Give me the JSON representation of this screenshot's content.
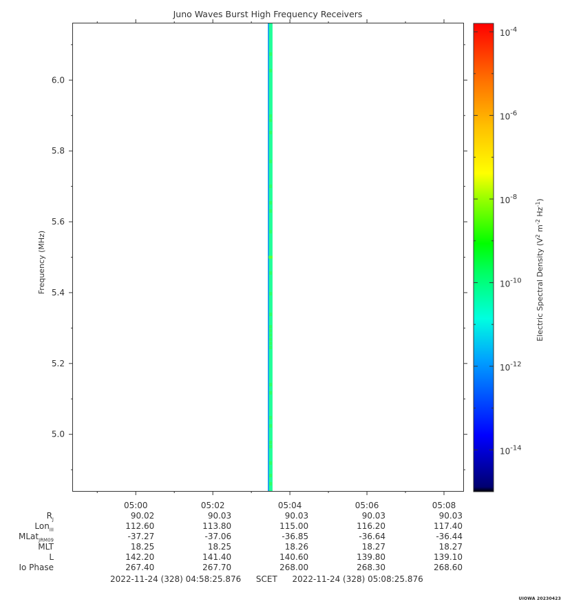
{
  "chart_data": {
    "type": "heatmap",
    "title": "Juno Waves Burst High Frequency Receivers",
    "ylabel": "Frequency (MHz)",
    "ylim": [
      4.84,
      6.16
    ],
    "y_ticks": [
      {
        "value": 5.0,
        "label": "5.0"
      },
      {
        "value": 5.2,
        "label": "5.2"
      },
      {
        "value": 5.4,
        "label": "5.4"
      },
      {
        "value": 5.6,
        "label": "5.6"
      },
      {
        "value": 5.8,
        "label": "5.8"
      },
      {
        "value": 6.0,
        "label": "6.0"
      }
    ],
    "x_time_range_minutes": [
      -1.63,
      8.5
    ],
    "x_ticks": [
      {
        "value": 0.0,
        "label": "05:00"
      },
      {
        "value": 2.0,
        "label": "05:02"
      },
      {
        "value": 4.0,
        "label": "05:04"
      },
      {
        "value": 6.0,
        "label": "05:06"
      },
      {
        "value": 8.0,
        "label": "05:08"
      }
    ],
    "data_column": {
      "time_start": 3.43,
      "time_end": 3.55,
      "typical_log10_density": -10.6,
      "peak": {
        "frequency": 5.5,
        "log10_density": -8.6
      }
    },
    "colorbar": {
      "label": "Electric Spectral Density (V² m⁻² Hz⁻¹)",
      "log_range": [
        -15,
        -3.8
      ],
      "ticks": [
        {
          "exp": -14,
          "label_base": "10",
          "label_exp": "-14"
        },
        {
          "exp": -12,
          "label_base": "10",
          "label_exp": "-12"
        },
        {
          "exp": -10,
          "label_base": "10",
          "label_exp": "-10"
        },
        {
          "exp": -8,
          "label_base": "10",
          "label_exp": "-8"
        },
        {
          "exp": -6,
          "label_base": "10",
          "label_exp": "-6"
        },
        {
          "exp": -4,
          "label_base": "10",
          "label_exp": "-4"
        }
      ],
      "label_parts": {
        "prefix": "Electric Spectral Density (V",
        "exp1": "2",
        "mid": " m",
        "exp2": "-2",
        "mid2": " Hz",
        "exp3": "-1",
        "suffix": ")"
      }
    }
  },
  "ephemeris": {
    "rows": [
      {
        "label": "R",
        "sub": "J",
        "values": [
          "90.02",
          "90.03",
          "90.03",
          "90.03",
          "90.03"
        ]
      },
      {
        "label": "Lon",
        "sub": "III",
        "values": [
          "112.60",
          "113.80",
          "115.00",
          "116.20",
          "117.40"
        ]
      },
      {
        "label": "MLat",
        "sub": "JRM09",
        "values": [
          "-37.27",
          "-37.06",
          "-36.85",
          "-36.64",
          "-36.44"
        ]
      },
      {
        "label": "MLT",
        "sub": "",
        "values": [
          "18.25",
          "18.25",
          "18.26",
          "18.27",
          "18.27"
        ]
      },
      {
        "label": "L",
        "sub": "",
        "values": [
          "142.20",
          "141.40",
          "140.60",
          "139.80",
          "139.10"
        ]
      },
      {
        "label": "Io Phase",
        "sub": "",
        "values": [
          "267.40",
          "267.70",
          "268.00",
          "268.30",
          "268.60"
        ]
      }
    ]
  },
  "footer": {
    "start": "2022-11-24 (328) 04:58:25.876",
    "scet": "SCET",
    "end": "2022-11-24 (328) 05:08:25.876"
  },
  "stamp": "UIOWA 20230423"
}
